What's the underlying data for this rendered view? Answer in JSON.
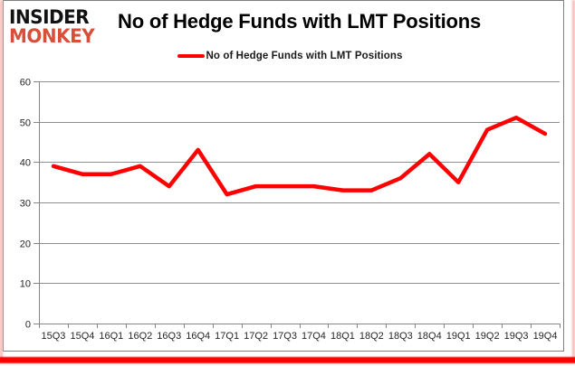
{
  "logo": {
    "line1": "INSIDER",
    "line2": "MONKEY"
  },
  "header": {
    "title": "No of Hedge Funds with LMT Positions"
  },
  "legend": {
    "label": "No of Hedge Funds with LMT Positions"
  },
  "chart_data": {
    "type": "line",
    "title": "No of Hedge Funds with LMT Positions",
    "categories": [
      "15Q3",
      "15Q4",
      "16Q1",
      "16Q2",
      "16Q3",
      "16Q4",
      "17Q1",
      "17Q2",
      "17Q3",
      "17Q4",
      "18Q1",
      "18Q2",
      "18Q3",
      "18Q4",
      "19Q1",
      "19Q2",
      "19Q3",
      "19Q4"
    ],
    "series": [
      {
        "name": "No of Hedge Funds with LMT Positions",
        "values": [
          39,
          37,
          37,
          39,
          34,
          43,
          32,
          34,
          34,
          34,
          33,
          33,
          36,
          42,
          35,
          48,
          51,
          47
        ],
        "color": "#fe0000"
      }
    ],
    "xlabel": "",
    "ylabel": "",
    "ylim": [
      0,
      60
    ],
    "yticks": [
      0,
      10,
      20,
      30,
      40,
      50,
      60
    ],
    "grid": true,
    "legend_position": "top"
  },
  "colors": {
    "line_red": "#fe0000",
    "logo_red": "#d84f38",
    "frame_gray": "#7f7f7f",
    "grid_gray": "#8e8e8e",
    "label_gray": "#262626"
  }
}
